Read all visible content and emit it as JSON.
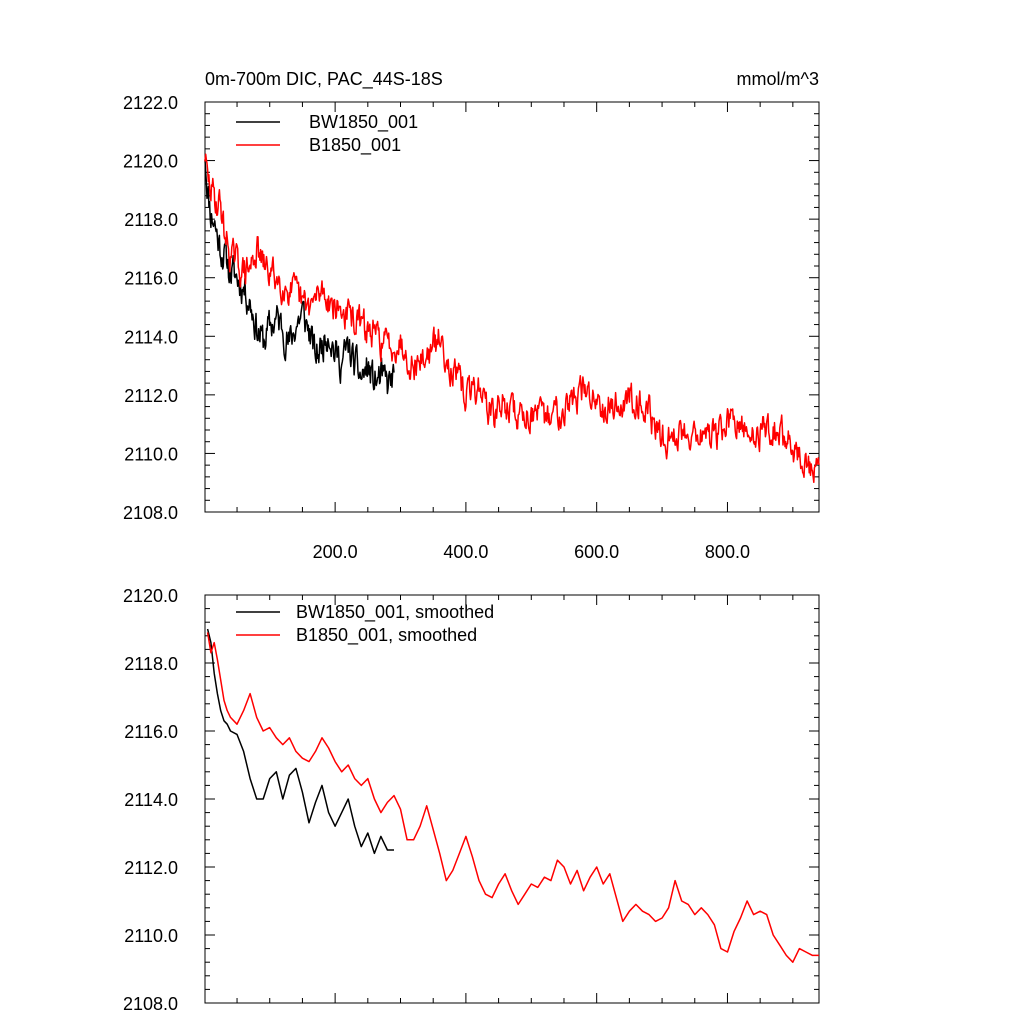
{
  "chart_data": [
    {
      "type": "line",
      "title": "0m-700m DIC, PAC_44S-18S",
      "units": "mmol/m^3",
      "xlim": [
        1,
        940
      ],
      "ylim": [
        2108,
        2122
      ],
      "xticks": [
        200,
        400,
        600,
        800
      ],
      "xtick_labels": [
        "200.0",
        "400.0",
        "600.0",
        "800.0"
      ],
      "yticks": [
        2108,
        2110,
        2112,
        2114,
        2116,
        2118,
        2120,
        2122
      ],
      "ytick_labels": [
        "2108.0",
        "2110.0",
        "2112.0",
        "2114.0",
        "2116.0",
        "2118.0",
        "2120.0",
        "2122.0"
      ],
      "legend_position": "top-left",
      "series": [
        {
          "name": "BW1850_001",
          "color": "#000000",
          "noise": 0.5,
          "seed": 11,
          "x": [
            1,
            5,
            10,
            15,
            20,
            25,
            30,
            40,
            50,
            60,
            70,
            80,
            90,
            100,
            110,
            120,
            130,
            140,
            150,
            160,
            170,
            180,
            190,
            200,
            210,
            220,
            230,
            240,
            250,
            260,
            270,
            280,
            290
          ],
          "values": [
            2120.3,
            2119.0,
            2118.2,
            2118.0,
            2117.4,
            2117.0,
            2116.8,
            2116.2,
            2116.0,
            2115.7,
            2115.2,
            2114.3,
            2113.8,
            2114.3,
            2114.6,
            2114.3,
            2113.7,
            2114.4,
            2114.8,
            2114.2,
            2113.3,
            2113.7,
            2114.3,
            2113.4,
            2113.1,
            2113.6,
            2113.0,
            2112.6,
            2112.9,
            2112.4,
            2112.6,
            2112.3,
            2112.6
          ]
        },
        {
          "name": "B1850_001",
          "color": "#ff0000",
          "noise": 0.45,
          "seed": 29,
          "x": [
            1,
            5,
            10,
            15,
            20,
            25,
            30,
            40,
            50,
            60,
            70,
            80,
            90,
            100,
            110,
            120,
            130,
            140,
            150,
            160,
            170,
            180,
            190,
            200,
            220,
            240,
            260,
            280,
            300,
            320,
            340,
            360,
            380,
            400,
            420,
            440,
            460,
            480,
            500,
            520,
            540,
            560,
            580,
            600,
            620,
            640,
            660,
            680,
            700,
            720,
            740,
            760,
            780,
            800,
            820,
            840,
            860,
            880,
            900,
            920,
            940
          ],
          "values": [
            2120.2,
            2119.3,
            2119.0,
            2118.8,
            2118.5,
            2118.6,
            2117.6,
            2116.8,
            2116.5,
            2116.2,
            2116.3,
            2117.0,
            2116.4,
            2116.2,
            2116.0,
            2115.8,
            2115.6,
            2115.4,
            2115.1,
            2115.0,
            2115.2,
            2115.6,
            2115.3,
            2115.0,
            2114.7,
            2114.4,
            2114.0,
            2113.7,
            2113.8,
            2113.0,
            2113.3,
            2113.9,
            2112.8,
            2112.0,
            2112.3,
            2111.3,
            2111.7,
            2111.3,
            2111.4,
            2111.1,
            2111.5,
            2111.8,
            2112.1,
            2111.9,
            2111.6,
            2111.7,
            2112.0,
            2111.4,
            2110.4,
            2110.6,
            2110.8,
            2110.7,
            2110.5,
            2111.1,
            2110.8,
            2110.6,
            2110.9,
            2110.7,
            2110.3,
            2109.5,
            2109.3
          ]
        }
      ]
    },
    {
      "type": "line",
      "title": "",
      "xlim": [
        1,
        940
      ],
      "ylim": [
        2108,
        2120
      ],
      "xticks": [
        200,
        400,
        600,
        800
      ],
      "yticks": [
        2108,
        2110,
        2112,
        2114,
        2116,
        2118,
        2120
      ],
      "ytick_labels": [
        "2108.0",
        "2110.0",
        "2112.0",
        "2114.0",
        "2116.0",
        "2118.0",
        "2120.0"
      ],
      "legend_position": "top-left",
      "series": [
        {
          "name": "BW1850_001, smoothed",
          "color": "#000000",
          "noise": 0,
          "x": [
            5,
            10,
            15,
            20,
            25,
            30,
            35,
            40,
            50,
            60,
            70,
            80,
            90,
            100,
            110,
            120,
            130,
            140,
            150,
            160,
            170,
            180,
            190,
            200,
            210,
            220,
            230,
            240,
            250,
            260,
            270,
            280,
            290
          ],
          "values": [
            2119.0,
            2118.6,
            2117.7,
            2117.1,
            2116.6,
            2116.3,
            2116.2,
            2116.0,
            2115.9,
            2115.4,
            2114.6,
            2114.0,
            2114.0,
            2114.6,
            2114.8,
            2114.0,
            2114.7,
            2114.9,
            2114.2,
            2113.3,
            2113.9,
            2114.4,
            2113.6,
            2113.2,
            2113.6,
            2114.0,
            2113.2,
            2112.6,
            2113.0,
            2112.4,
            2112.9,
            2112.5,
            2112.5
          ]
        },
        {
          "name": "B1850_001, smoothed",
          "color": "#ff0000",
          "noise": 0,
          "x": [
            5,
            10,
            15,
            20,
            25,
            30,
            35,
            40,
            50,
            60,
            70,
            80,
            90,
            100,
            110,
            120,
            130,
            140,
            150,
            160,
            170,
            180,
            190,
            200,
            210,
            220,
            230,
            240,
            250,
            260,
            270,
            280,
            290,
            300,
            310,
            320,
            330,
            340,
            350,
            360,
            370,
            380,
            390,
            400,
            410,
            420,
            430,
            440,
            450,
            460,
            470,
            480,
            490,
            500,
            510,
            520,
            530,
            540,
            550,
            560,
            570,
            580,
            590,
            600,
            610,
            620,
            630,
            640,
            650,
            660,
            670,
            680,
            690,
            700,
            710,
            720,
            730,
            740,
            750,
            760,
            770,
            780,
            790,
            800,
            810,
            820,
            830,
            840,
            850,
            860,
            870,
            880,
            890,
            900,
            910,
            920,
            930,
            940
          ],
          "values": [
            2118.9,
            2118.3,
            2118.6,
            2118.1,
            2117.5,
            2116.9,
            2116.6,
            2116.4,
            2116.2,
            2116.6,
            2117.1,
            2116.4,
            2116.0,
            2116.1,
            2115.8,
            2115.6,
            2115.8,
            2115.4,
            2115.2,
            2115.1,
            2115.4,
            2115.8,
            2115.5,
            2115.1,
            2114.8,
            2115.0,
            2114.6,
            2114.4,
            2114.6,
            2114.0,
            2113.6,
            2113.9,
            2114.1,
            2113.7,
            2112.8,
            2112.8,
            2113.2,
            2113.8,
            2113.1,
            2112.4,
            2111.6,
            2111.9,
            2112.4,
            2112.9,
            2112.3,
            2111.6,
            2111.2,
            2111.1,
            2111.5,
            2111.8,
            2111.3,
            2110.9,
            2111.2,
            2111.5,
            2111.4,
            2111.7,
            2111.6,
            2112.2,
            2112.0,
            2111.5,
            2111.9,
            2111.3,
            2111.7,
            2112.0,
            2111.5,
            2111.8,
            2111.1,
            2110.4,
            2110.7,
            2110.9,
            2110.7,
            2110.6,
            2110.4,
            2110.5,
            2110.8,
            2111.6,
            2111.0,
            2110.9,
            2110.6,
            2110.8,
            2110.6,
            2110.3,
            2109.6,
            2109.5,
            2110.1,
            2110.5,
            2111.0,
            2110.6,
            2110.7,
            2110.6,
            2110.0,
            2109.7,
            2109.4,
            2109.2,
            2109.6,
            2109.5,
            2109.4,
            2109.4
          ]
        }
      ]
    }
  ]
}
